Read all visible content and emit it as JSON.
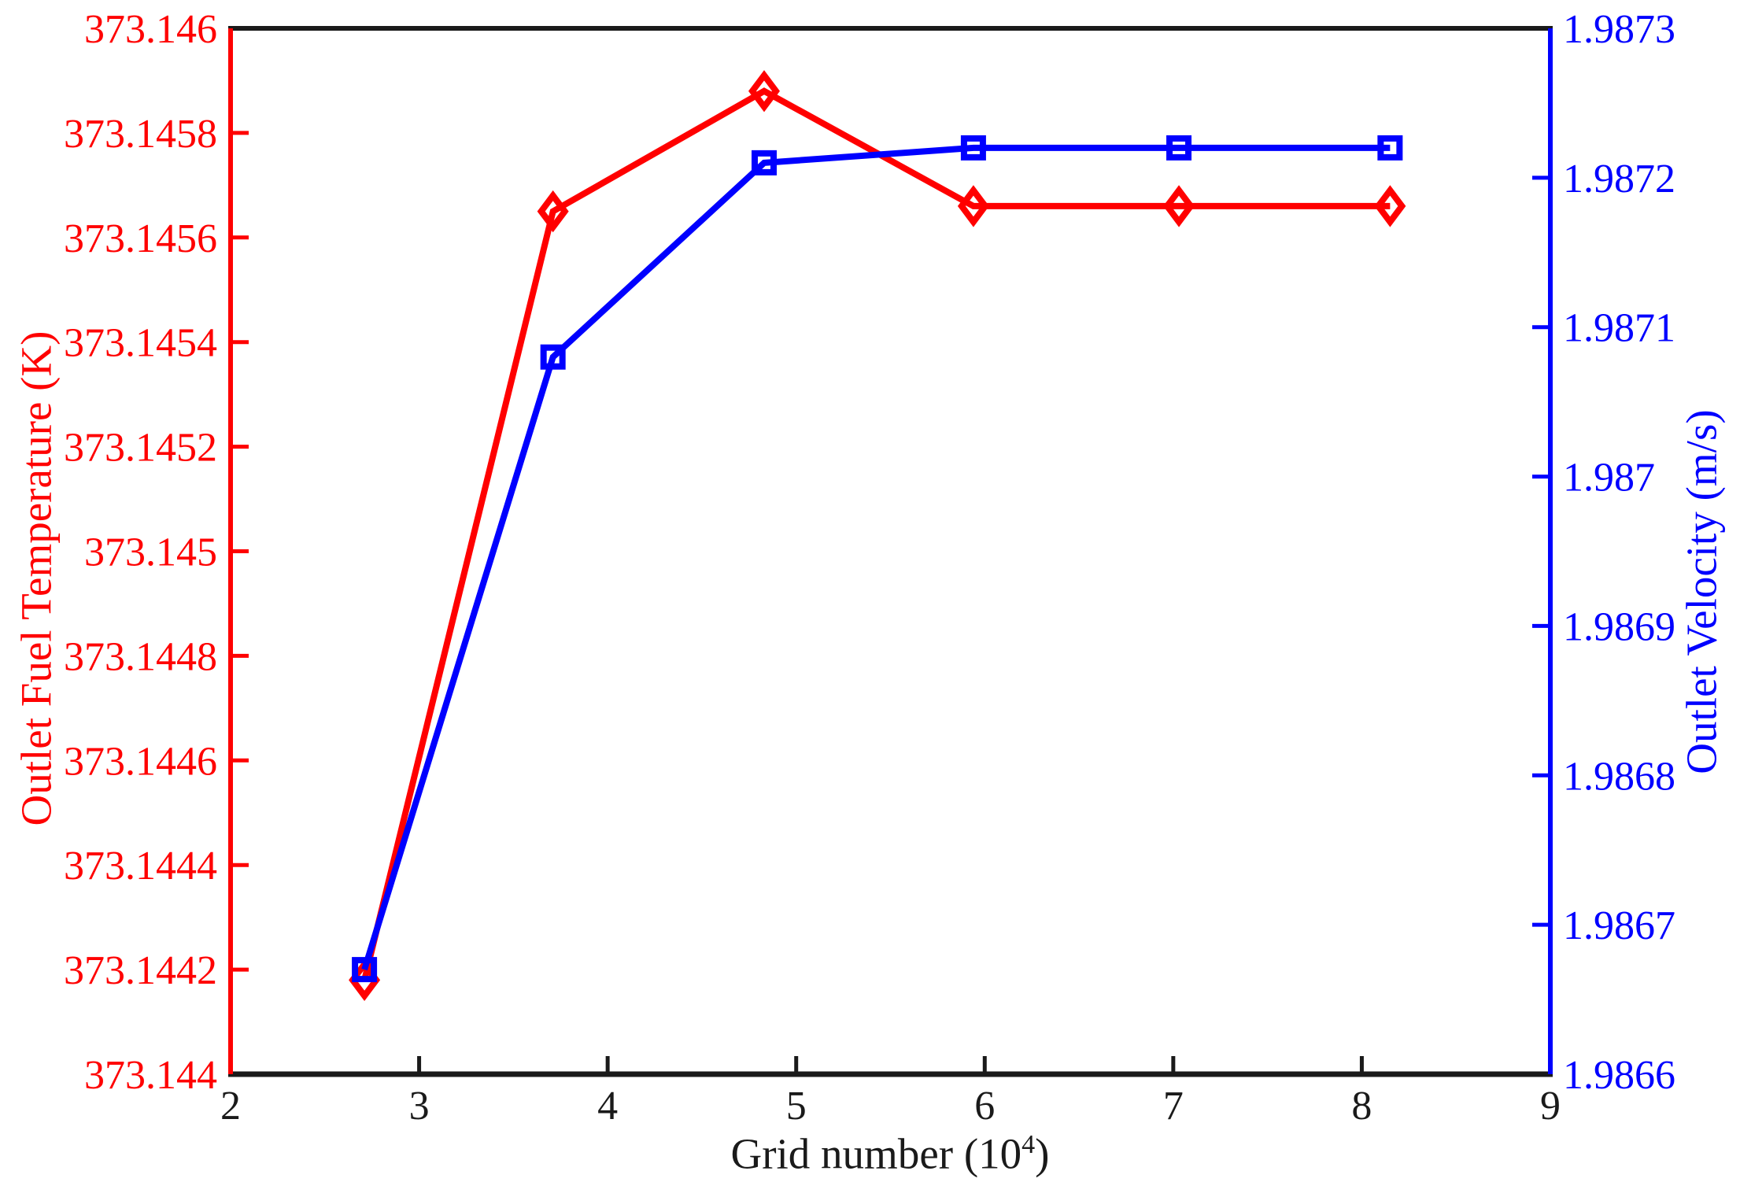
{
  "chart_data": {
    "type": "line",
    "title": "",
    "xlabel": {
      "text": "Grid number (10^4)",
      "prefix": "Grid number (10",
      "sup": "4",
      "suffix": ")"
    },
    "ylabel_left": "Outlet Fuel Temperature (K)",
    "ylabel_right": "Outlet Velocity (m/s)",
    "x": [
      2.71,
      3.71,
      4.83,
      5.94,
      7.03,
      8.15
    ],
    "series": [
      {
        "id": "temperature-series",
        "name": "Outlet Fuel Temperature",
        "axis": "left",
        "color": "#ff0000",
        "marker": "diamond",
        "values": [
          373.14418,
          373.14565,
          373.14588,
          373.14566,
          373.14566,
          373.14566
        ]
      },
      {
        "id": "velocity-series",
        "name": "Outlet Velocity",
        "axis": "right",
        "color": "#0000ff",
        "marker": "square",
        "values": [
          1.98667,
          1.98708,
          1.98721,
          1.98722,
          1.98722,
          1.98722
        ]
      }
    ],
    "x_axis": {
      "min": 2,
      "max": 9,
      "ticks": [
        "2",
        "3",
        "4",
        "5",
        "6",
        "7",
        "8",
        "9"
      ],
      "color": "#1a1a1a"
    },
    "left_axis": {
      "min": 373.144,
      "max": 373.146,
      "ticks": [
        "373.144",
        "373.1442",
        "373.1444",
        "373.1446",
        "373.1448",
        "373.145",
        "373.1452",
        "373.1454",
        "373.1456",
        "373.1458",
        "373.146"
      ],
      "color": "#ff0000"
    },
    "right_axis": {
      "min": 1.9866,
      "max": 1.9873,
      "ticks": [
        "1.9866",
        "1.9867",
        "1.9868",
        "1.9869",
        "1.987",
        "1.9871",
        "1.9872",
        "1.9873"
      ],
      "color": "#0000ff"
    },
    "grid": false,
    "legend": "none",
    "background": "#ffffff"
  }
}
